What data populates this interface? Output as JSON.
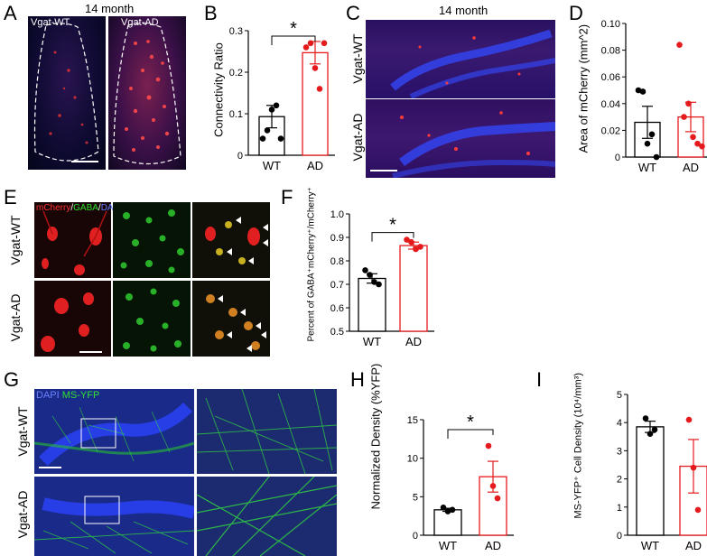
{
  "panels": {
    "A": {
      "letter": "A",
      "title": "14 month",
      "wt_label": "Vgat-WT",
      "ad_label": "Vgat-AD"
    },
    "B": {
      "letter": "B"
    },
    "C": {
      "letter": "C",
      "title": "14 month",
      "wt_label": "Vgat-WT",
      "ad_label": "Vgat-AD"
    },
    "D": {
      "letter": "D"
    },
    "E": {
      "letter": "E",
      "stain_mcherry": "mCherry",
      "stain_sep1": "/",
      "stain_gaba": "GABA",
      "stain_sep2": "/",
      "stain_dapi": "DAPI",
      "wt_label": "Vgat-WT",
      "ad_label": "Vgat-AD"
    },
    "F": {
      "letter": "F"
    },
    "G": {
      "letter": "G",
      "stain_dapi": "DAPI",
      "stain_ms": "MS-YFP",
      "wt_label": "Vgat-WT",
      "ad_label": "Vgat-AD"
    },
    "H": {
      "letter": "H"
    },
    "I": {
      "letter": "I"
    }
  },
  "colors": {
    "wt": "#000000",
    "ad": "#e41a1c",
    "dapi": "#2838d8",
    "mcherry": "#e02020",
    "gfp": "#20c030"
  },
  "chart_data": [
    {
      "id": "B",
      "type": "bar",
      "categories": [
        "WT",
        "AD"
      ],
      "values": [
        0.093,
        0.247
      ],
      "errors": [
        0.027,
        0.027
      ],
      "points": [
        [
          0.04,
          0.06,
          0.11,
          0.12,
          0.04
        ],
        [
          0.26,
          0.27,
          0.21,
          0.16,
          0.27
        ]
      ],
      "ylabel": "Connectivity Ratio",
      "ylim": [
        0,
        0.3
      ],
      "yticks": [
        "0",
        "0.1",
        "0.2",
        "0.3"
      ],
      "significance": "*"
    },
    {
      "id": "D",
      "type": "bar",
      "categories": [
        "WT",
        "AD"
      ],
      "values": [
        0.026,
        0.03
      ],
      "errors": [
        0.012,
        0.011
      ],
      "points": [
        [
          0.05,
          0.049,
          0.01,
          0.017,
          0.0
        ],
        [
          0.084,
          0.03,
          0.04,
          0.015,
          0.01,
          0.008
        ]
      ],
      "ylabel": "Area of mCherry (mm^2)",
      "ylim": [
        0,
        0.1
      ],
      "yticks": [
        "0",
        "0.02",
        "0.04",
        "0.06",
        "0.08",
        "0.10"
      ]
    },
    {
      "id": "F",
      "type": "bar",
      "categories": [
        "WT",
        "AD"
      ],
      "values": [
        0.725,
        0.865
      ],
      "errors": [
        0.02,
        0.015
      ],
      "points": [
        [
          0.76,
          0.74,
          0.71,
          0.7
        ],
        [
          0.89,
          0.88,
          0.85,
          0.86
        ]
      ],
      "ylabel": "Percent of GABA⁺mCherry⁺/mCherry⁺",
      "ylim": [
        0.5,
        1.0
      ],
      "yticks": [
        "0.5",
        "0.6",
        "0.7",
        "0.8",
        "0.9",
        "1.0"
      ],
      "significance": "*"
    },
    {
      "id": "H",
      "type": "bar",
      "categories": [
        "WT",
        "AD"
      ],
      "values": [
        3.3,
        7.6
      ],
      "errors": [
        0.2,
        2.0
      ],
      "points": [
        [
          3.6,
          3.1,
          3.3
        ],
        [
          11.6,
          6.4,
          4.8
        ]
      ],
      "ylabel": "Normalized Density (%YFP)",
      "ylim": [
        0,
        15
      ],
      "yticks": [
        "0",
        "5",
        "10",
        "15"
      ],
      "significance": "*"
    },
    {
      "id": "I",
      "type": "bar",
      "categories": [
        "WT",
        "AD"
      ],
      "values": [
        3.85,
        2.45
      ],
      "errors": [
        0.2,
        0.95
      ],
      "points": [
        [
          4.15,
          3.6,
          3.75
        ],
        [
          4.1,
          2.4,
          0.9
        ]
      ],
      "ylabel": "MS-YFP⁺ Cell Density (10⁴/mm³)",
      "ylim": [
        0,
        5
      ],
      "yticks": [
        "0",
        "1",
        "2",
        "3",
        "4",
        "5"
      ]
    }
  ]
}
